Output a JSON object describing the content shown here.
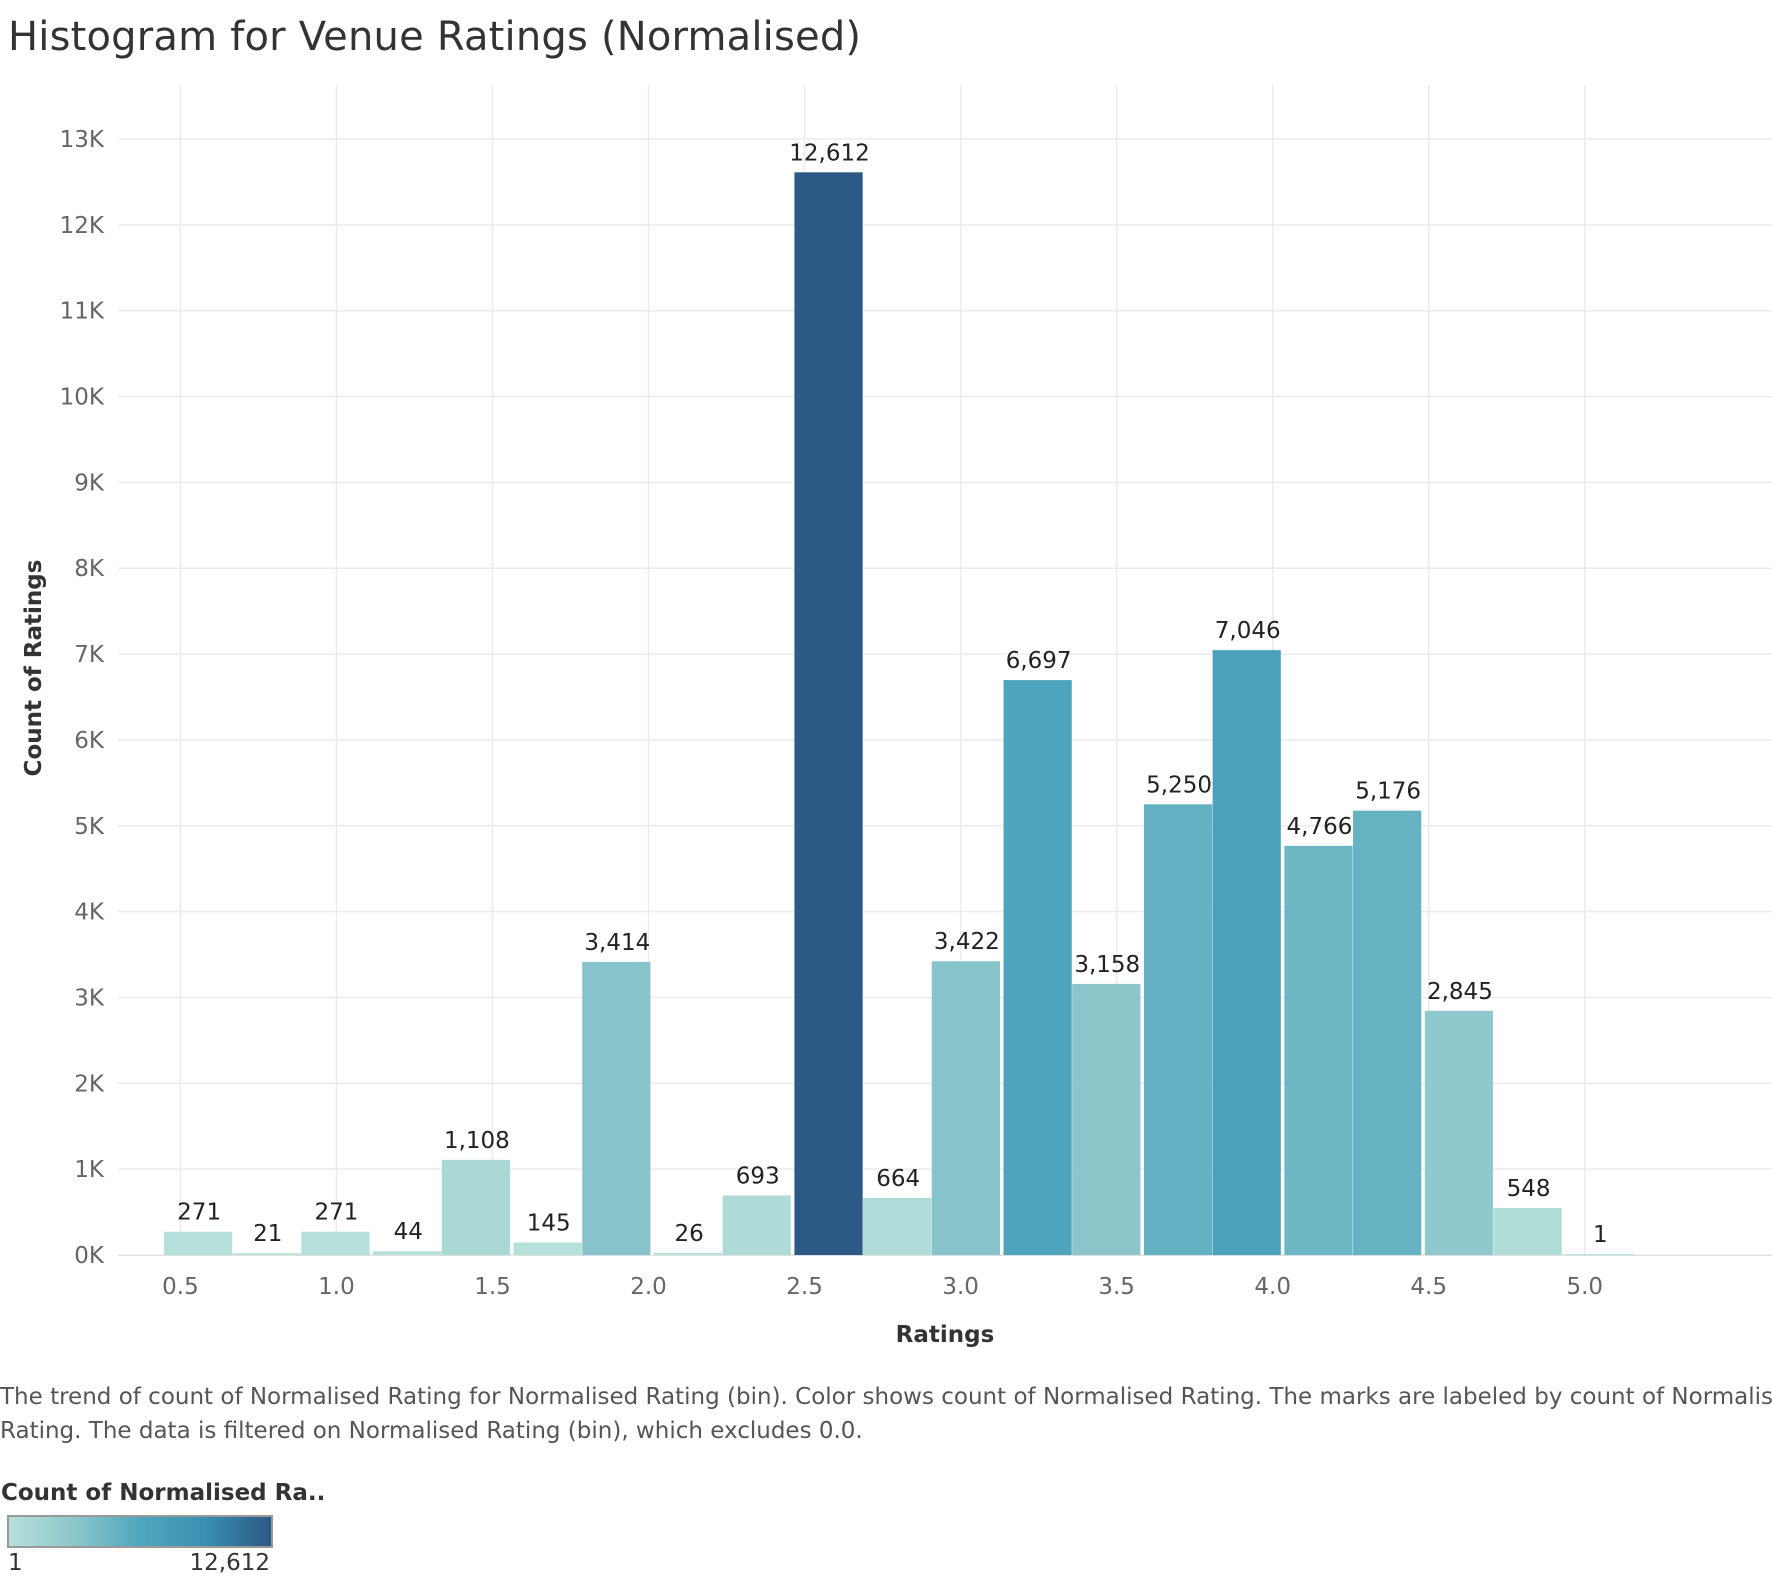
{
  "chart_data": {
    "type": "bar",
    "title": "Histogram for Venue Ratings (Normalised)",
    "xlabel": "Ratings",
    "ylabel": "Count of Ratings",
    "x_ticks": [
      "0.5",
      "1.0",
      "1.5",
      "2.0",
      "2.5",
      "3.0",
      "3.5",
      "4.0",
      "4.5",
      "5.0"
    ],
    "y_ticks": [
      "0K",
      "1K",
      "2K",
      "3K",
      "4K",
      "5K",
      "6K",
      "7K",
      "8K",
      "9K",
      "10K",
      "11K",
      "12K",
      "13K"
    ],
    "ylim": [
      0,
      13000
    ],
    "xlim": [
      0.3,
      5.6
    ],
    "bin_width": 0.225,
    "bins": [
      {
        "x": 0.56,
        "value": 271,
        "label": "271"
      },
      {
        "x": 0.78,
        "value": 21,
        "label": "21"
      },
      {
        "x": 1.0,
        "value": 271,
        "label": "271"
      },
      {
        "x": 1.23,
        "value": 44,
        "label": "44"
      },
      {
        "x": 1.45,
        "value": 1108,
        "label": "1,108"
      },
      {
        "x": 1.68,
        "value": 145,
        "label": "145"
      },
      {
        "x": 1.9,
        "value": 3414,
        "label": "3,414"
      },
      {
        "x": 2.13,
        "value": 26,
        "label": "26"
      },
      {
        "x": 2.35,
        "value": 693,
        "label": "693"
      },
      {
        "x": 2.58,
        "value": 12612,
        "label": "12,612"
      },
      {
        "x": 2.8,
        "value": 664,
        "label": "664"
      },
      {
        "x": 3.02,
        "value": 3422,
        "label": "3,422"
      },
      {
        "x": 3.25,
        "value": 6697,
        "label": "6,697"
      },
      {
        "x": 3.47,
        "value": 3158,
        "label": "3,158"
      },
      {
        "x": 3.7,
        "value": 5250,
        "label": "5,250"
      },
      {
        "x": 3.92,
        "value": 7046,
        "label": "7,046"
      },
      {
        "x": 4.15,
        "value": 4766,
        "label": "4,766"
      },
      {
        "x": 4.37,
        "value": 5176,
        "label": "5,176"
      },
      {
        "x": 4.6,
        "value": 2845,
        "label": "2,845"
      },
      {
        "x": 4.82,
        "value": 548,
        "label": "548"
      },
      {
        "x": 5.05,
        "value": 1,
        "label": "1"
      }
    ],
    "color_scale": {
      "min": 1,
      "max": 12612,
      "colors": [
        "#b8e1db",
        "#8cc6cb",
        "#4fa7bd",
        "#3b8fb1",
        "#2c5985"
      ]
    },
    "grid": true
  },
  "caption": "The trend of count of Normalised Rating for Normalised Rating (bin).  Color shows count of Normalised Rating.  The marks are labeled by count of Normalised Rating. The data is filtered on Normalised Rating (bin), which excludes 0.0.",
  "caption_lines": [
    "The trend of count of Normalised Rating for Normalised Rating (bin).  Color shows count of Normalised Rating.  The marks are labeled by count of Normalised",
    "Rating. The data is filtered on Normalised Rating (bin), which excludes 0.0."
  ],
  "legend": {
    "title": "Count of Normalised Ra..",
    "min_label": "1",
    "max_label": "12,612"
  }
}
